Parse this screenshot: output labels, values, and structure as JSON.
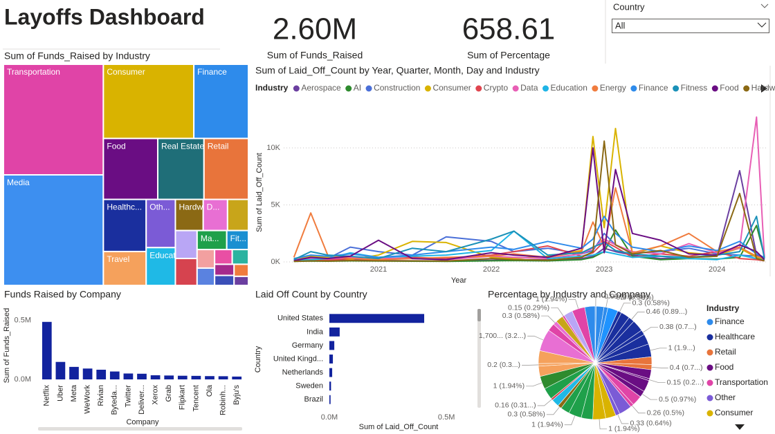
{
  "header": {
    "title": "Layoffs Dashboard"
  },
  "kpis": [
    {
      "value": "2.60M",
      "label": "Sum of Funds_Raised"
    },
    {
      "value": "658.61",
      "label": "Sum of Percentage"
    }
  ],
  "slicer": {
    "label": "Country",
    "selected": "All"
  },
  "chart_data": [
    {
      "type": "treemap",
      "title": "Sum of Funds_Raised by Industry",
      "categories": [
        "Transportation",
        "Media",
        "Consumer",
        "Finance",
        "Food",
        "Real Estate",
        "Retail",
        "Healthc...",
        "Travel",
        "Oth...",
        "Educati...",
        "Hardware",
        "D...",
        null,
        null,
        null,
        "Ma...",
        "Fit...",
        null,
        null,
        null,
        null,
        null,
        null,
        null,
        null
      ],
      "values": [
        510000,
        510000,
        310000,
        187000,
        153000,
        130000,
        125000,
        103000,
        67000,
        65000,
        51000,
        40000,
        35000,
        30000,
        28000,
        27000,
        26000,
        19000,
        15000,
        14000,
        12000,
        11000,
        10000,
        9000,
        8000,
        6000
      ],
      "colors": [
        "#e044a7",
        "#3d8ff0",
        "#d9b300",
        "#2e8beb",
        "#6a0d83",
        "#1f6e78",
        "#e8743b",
        "#1a2f9e",
        "#f5a15c",
        "#7b5bd6",
        "#1fb9e6",
        "#8b6914",
        "#e86fd3",
        "#c8a51a",
        "#b9a6f5",
        "#d6434f",
        "#1fa04a",
        "#1b8fd1",
        "#f2a0a0",
        "#5a82e0",
        "#e94fa4",
        "#2bb3a0",
        "#a52a8c",
        "#3a4fb8",
        "#f07c3e",
        "#6b3fa0"
      ]
    },
    {
      "type": "line",
      "title": "Sum of Laid_Off_Count by Year, Quarter, Month, Day and Industry",
      "x_label": "Year",
      "y_label": "Sum of Laid_Off_Count",
      "legend_title": "Industry",
      "grid": true,
      "x": [
        2020.25,
        2020.4,
        2020.55,
        2020.75,
        2021.0,
        2021.3,
        2021.6,
        2022.0,
        2022.2,
        2022.5,
        2022.8,
        2022.9,
        2023.0,
        2023.1,
        2023.25,
        2023.5,
        2023.75,
        2024.0,
        2024.2,
        2024.35,
        2024.42
      ],
      "xlim": [
        2020.16,
        2024.44
      ],
      "xticks": [
        2021,
        2022,
        2023,
        2024
      ],
      "ylim": [
        0,
        14000
      ],
      "yticks": [
        {
          "value": 0,
          "label": "0K"
        },
        {
          "value": 5000,
          "label": "5K"
        },
        {
          "value": 10000,
          "label": "10K"
        }
      ],
      "series": [
        {
          "name": "Aerospace",
          "color": "#6b3fa0",
          "values": [
            100,
            300,
            150,
            200,
            120,
            100,
            90,
            150,
            200,
            180,
            300,
            500,
            1200,
            900,
            600,
            300,
            400,
            500,
            8000,
            600,
            300
          ]
        },
        {
          "name": "AI",
          "color": "#2e8b2e",
          "values": [
            50,
            80,
            60,
            90,
            70,
            60,
            50,
            100,
            120,
            90,
            200,
            400,
            900,
            2800,
            500,
            200,
            300,
            250,
            400,
            3200,
            500
          ]
        },
        {
          "name": "Construction",
          "color": "#4a6fd8",
          "values": [
            200,
            400,
            300,
            1300,
            900,
            600,
            2200,
            1800,
            900,
            1200,
            700,
            1000,
            2500,
            1500,
            800,
            900,
            1200,
            700,
            600,
            500,
            300
          ]
        },
        {
          "name": "Consumer",
          "color": "#d9b300",
          "values": [
            300,
            500,
            400,
            200,
            600,
            1800,
            1700,
            400,
            300,
            500,
            1000,
            11000,
            3000,
            11700,
            700,
            1400,
            800,
            600,
            1200,
            400,
            200
          ]
        },
        {
          "name": "Crypto",
          "color": "#e0454f",
          "values": [
            100,
            200,
            150,
            300,
            200,
            400,
            300,
            600,
            900,
            1400,
            500,
            800,
            1800,
            1300,
            400,
            700,
            500,
            900,
            300,
            200,
            100
          ]
        },
        {
          "name": "Data",
          "color": "#e85fb5",
          "values": [
            200,
            300,
            250,
            400,
            350,
            300,
            200,
            500,
            400,
            300,
            700,
            1200,
            2000,
            1500,
            900,
            700,
            1600,
            800,
            1200,
            12700,
            400
          ]
        },
        {
          "name": "Education",
          "color": "#1fb4e6",
          "values": [
            150,
            200,
            300,
            800,
            400,
            500,
            600,
            1000,
            2700,
            300,
            500,
            600,
            900,
            700,
            400,
            500,
            300,
            200,
            600,
            300,
            150
          ]
        },
        {
          "name": "Energy",
          "color": "#f07c3e",
          "values": [
            400,
            4300,
            600,
            300,
            200,
            300,
            400,
            500,
            700,
            400,
            900,
            3500,
            1300,
            6500,
            800,
            1400,
            2500,
            900,
            1300,
            500,
            300
          ]
        },
        {
          "name": "Finance",
          "color": "#2e8beb",
          "values": [
            300,
            600,
            500,
            700,
            400,
            600,
            900,
            1300,
            1100,
            1800,
            1200,
            2000,
            4000,
            2500,
            1300,
            900,
            1400,
            1000,
            1800,
            700,
            400
          ]
        },
        {
          "name": "Fitness",
          "color": "#1a91b8",
          "values": [
            200,
            900,
            600,
            500,
            300,
            1200,
            900,
            2000,
            2700,
            600,
            800,
            1300,
            1700,
            1000,
            700,
            500,
            400,
            600,
            900,
            4000,
            300
          ]
        },
        {
          "name": "Food",
          "color": "#6a0d83",
          "values": [
            100,
            400,
            300,
            500,
            1900,
            300,
            200,
            800,
            600,
            400,
            1200,
            10000,
            800,
            8100,
            2500,
            1900,
            700,
            600,
            1500,
            900,
            200
          ]
        },
        {
          "name": "Hardware",
          "color": "#8b6914",
          "values": [
            50,
            100,
            80,
            120,
            100,
            90,
            80,
            300,
            200,
            150,
            400,
            900,
            10600,
            1500,
            700,
            1000,
            400,
            500,
            6000,
            300,
            100
          ]
        }
      ]
    },
    {
      "type": "bar",
      "title": "Funds Raised by Company",
      "x_label": "Company",
      "y_label": "Sum of Funds_Raised",
      "color": "#12239e",
      "categories": [
        "Netflix",
        "Uber",
        "Meta",
        "WeWork",
        "Rivian",
        "Byteda...",
        "Twitter",
        "Deliver...",
        "Xerox",
        "Grab",
        "Flipkart",
        "Tencent",
        "Ola",
        "Robinh...",
        "Byju's"
      ],
      "values": [
        487000,
        148000,
        106000,
        92000,
        82000,
        67000,
        50000,
        48000,
        35000,
        33000,
        31000,
        30000,
        28000,
        27000,
        24000
      ],
      "ylim": [
        0,
        550000
      ],
      "yticks": [
        {
          "value": 0,
          "label": "0.0M"
        },
        {
          "value": 500000,
          "label": "0.5M"
        }
      ]
    },
    {
      "type": "bar",
      "orientation": "horizontal",
      "title": "Laid Off Count by Country",
      "x_label": "Sum of Laid_Off_Count",
      "y_label": "Country",
      "color": "#12239e",
      "categories": [
        "United States",
        "India",
        "Germany",
        "United Kingd...",
        "Netherlands",
        "Sweden",
        "Brazil"
      ],
      "values": [
        405000,
        44000,
        21000,
        15000,
        12000,
        7000,
        5000
      ],
      "xlim": [
        0,
        600000
      ],
      "xticks": [
        {
          "value": 0,
          "label": "0.0M"
        },
        {
          "value": 500000,
          "label": "0.5M"
        }
      ]
    },
    {
      "type": "pie",
      "title": "Percentage by Industry and Company",
      "legend_title": "Industry",
      "legend_items": [
        {
          "name": "Finance",
          "color": "#2e8beb"
        },
        {
          "name": "Healthcare",
          "color": "#1a2f9e"
        },
        {
          "name": "Retail",
          "color": "#e8743b"
        },
        {
          "name": "Food",
          "color": "#6a0d83"
        },
        {
          "name": "Transportation",
          "color": "#e044a7"
        },
        {
          "name": "Other",
          "color": "#7b5bd6"
        },
        {
          "name": "Consumer",
          "color": "#d9b300"
        }
      ],
      "values": [
        0.09,
        0.6,
        0.3,
        0.8,
        0.3,
        0.7,
        0.46,
        0.9,
        0.38,
        0.8,
        1,
        0.6,
        0.4,
        0.7,
        0.15,
        0.9,
        0.5,
        0.8,
        0.26,
        1.0,
        0.33,
        0.8,
        1,
        0.9,
        1,
        0.7,
        0.3,
        0.6,
        0.16,
        0.9,
        1,
        0.8,
        0.2,
        1.0,
        1.7,
        0.6,
        0.3,
        0.6,
        0.15,
        0.7,
        1,
        0.8
      ],
      "value_labels": [
        "0.09 (0.17%)",
        null,
        "0.3 (0.58%)",
        null,
        "0.3 (0.58%)",
        null,
        "0.46 (0.89...)",
        null,
        "0.38 (0.7...)",
        null,
        "1 (1.9...)",
        null,
        "0.4 (0.7...)",
        null,
        "0.15 (0.2...)",
        null,
        "0.5 (0.97%)",
        null,
        "0.26 (0.5%)",
        null,
        "0.33 (0.64%)",
        null,
        "1 (1.94%)",
        null,
        "1 (1.94%)",
        null,
        "0.3 (0.58%)",
        null,
        "0.16 (0.31...)",
        null,
        "1 (1.94%)",
        null,
        "0.2 (0.3...)",
        null,
        "1,700... (3.2...)",
        null,
        "0.3 (0.58%)",
        null,
        "0.15 (0.29%)",
        null,
        "1 (1.94%)",
        null
      ],
      "colors": [
        "#2e8beb",
        "#2e8beb",
        "#2e8beb",
        "#1f93ff",
        "#1a2f9e",
        "#1a2f9e",
        "#1a2f9e",
        "#1a2f9e",
        "#1a2f9e",
        "#1a2f9e",
        "#1a2f9e",
        "#e8743b",
        "#e8743b",
        "#6a0d83",
        "#6a0d83",
        "#6a0d83",
        "#6a0d83",
        "#e044a7",
        "#e044a7",
        "#7b5bd6",
        "#7b5bd6",
        "#d9b300",
        "#d9b300",
        "#1fa04a",
        "#1fa04a",
        "#1fa04a",
        "#8b6914",
        "#1fb9e6",
        "#d6434f",
        "#1fa04a",
        "#2e8b2e",
        "#f5a15c",
        "#f5a15c",
        "#f5a15c",
        "#e86fd3",
        "#e044a7",
        "#e86fd3",
        "#c8a51a",
        "#e044a7",
        "#b9a6f5",
        "#e044a7",
        "#2e8beb"
      ]
    }
  ]
}
